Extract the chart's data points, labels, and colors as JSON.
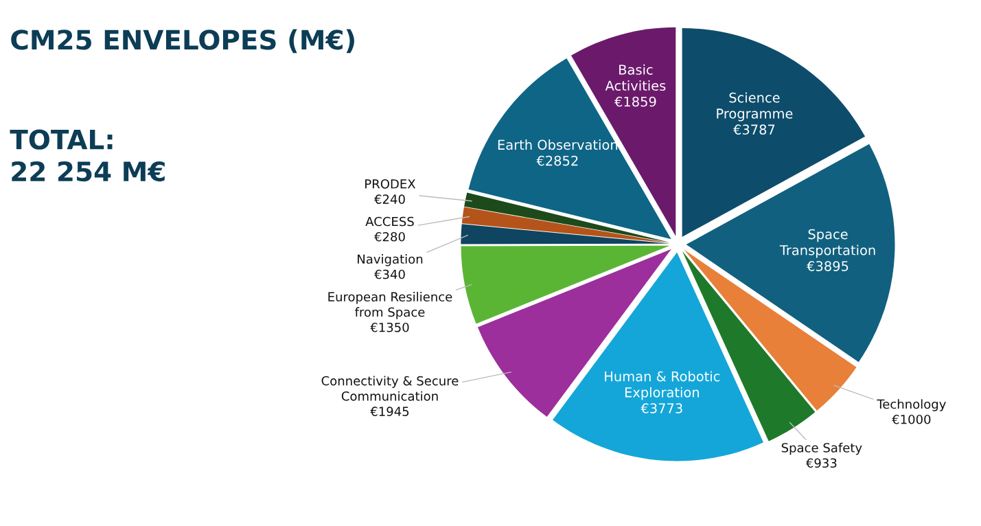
{
  "chart_data": {
    "type": "pie",
    "title": "CM25 ENVELOPES (M€)",
    "annotations": [
      "TOTAL:\n22 254 M€"
    ],
    "categories": [
      "Science\nProgramme",
      "Space\nTransportation",
      "Technology",
      "Space Safety",
      "Human & Robotic\nExploration",
      "Connectivity & Secure\nCommunication",
      "European Resilience\nfrom Space",
      "Navigation",
      "ACCESS",
      "PRODEX",
      "Earth Observation",
      "Basic\nActivities"
    ],
    "values": [
      3787,
      3895,
      1000,
      933,
      3773,
      1945,
      1350,
      340,
      280,
      240,
      2852,
      1859
    ],
    "value_labels": [
      "€3787",
      "€3895",
      "€1000",
      "€933",
      "€3773",
      "€1945",
      "€1350",
      "€340",
      "€280",
      "€240",
      "€2852",
      "€1859"
    ],
    "colors": [
      "#0d4d6b",
      "#11607f",
      "#e8803a",
      "#1e7a2a",
      "#14a6d8",
      "#9c2f9c",
      "#5bb535",
      "#0f4560",
      "#b5541a",
      "#1d4a1a",
      "#0f6586",
      "#6b1a6b"
    ],
    "legend": false
  }
}
